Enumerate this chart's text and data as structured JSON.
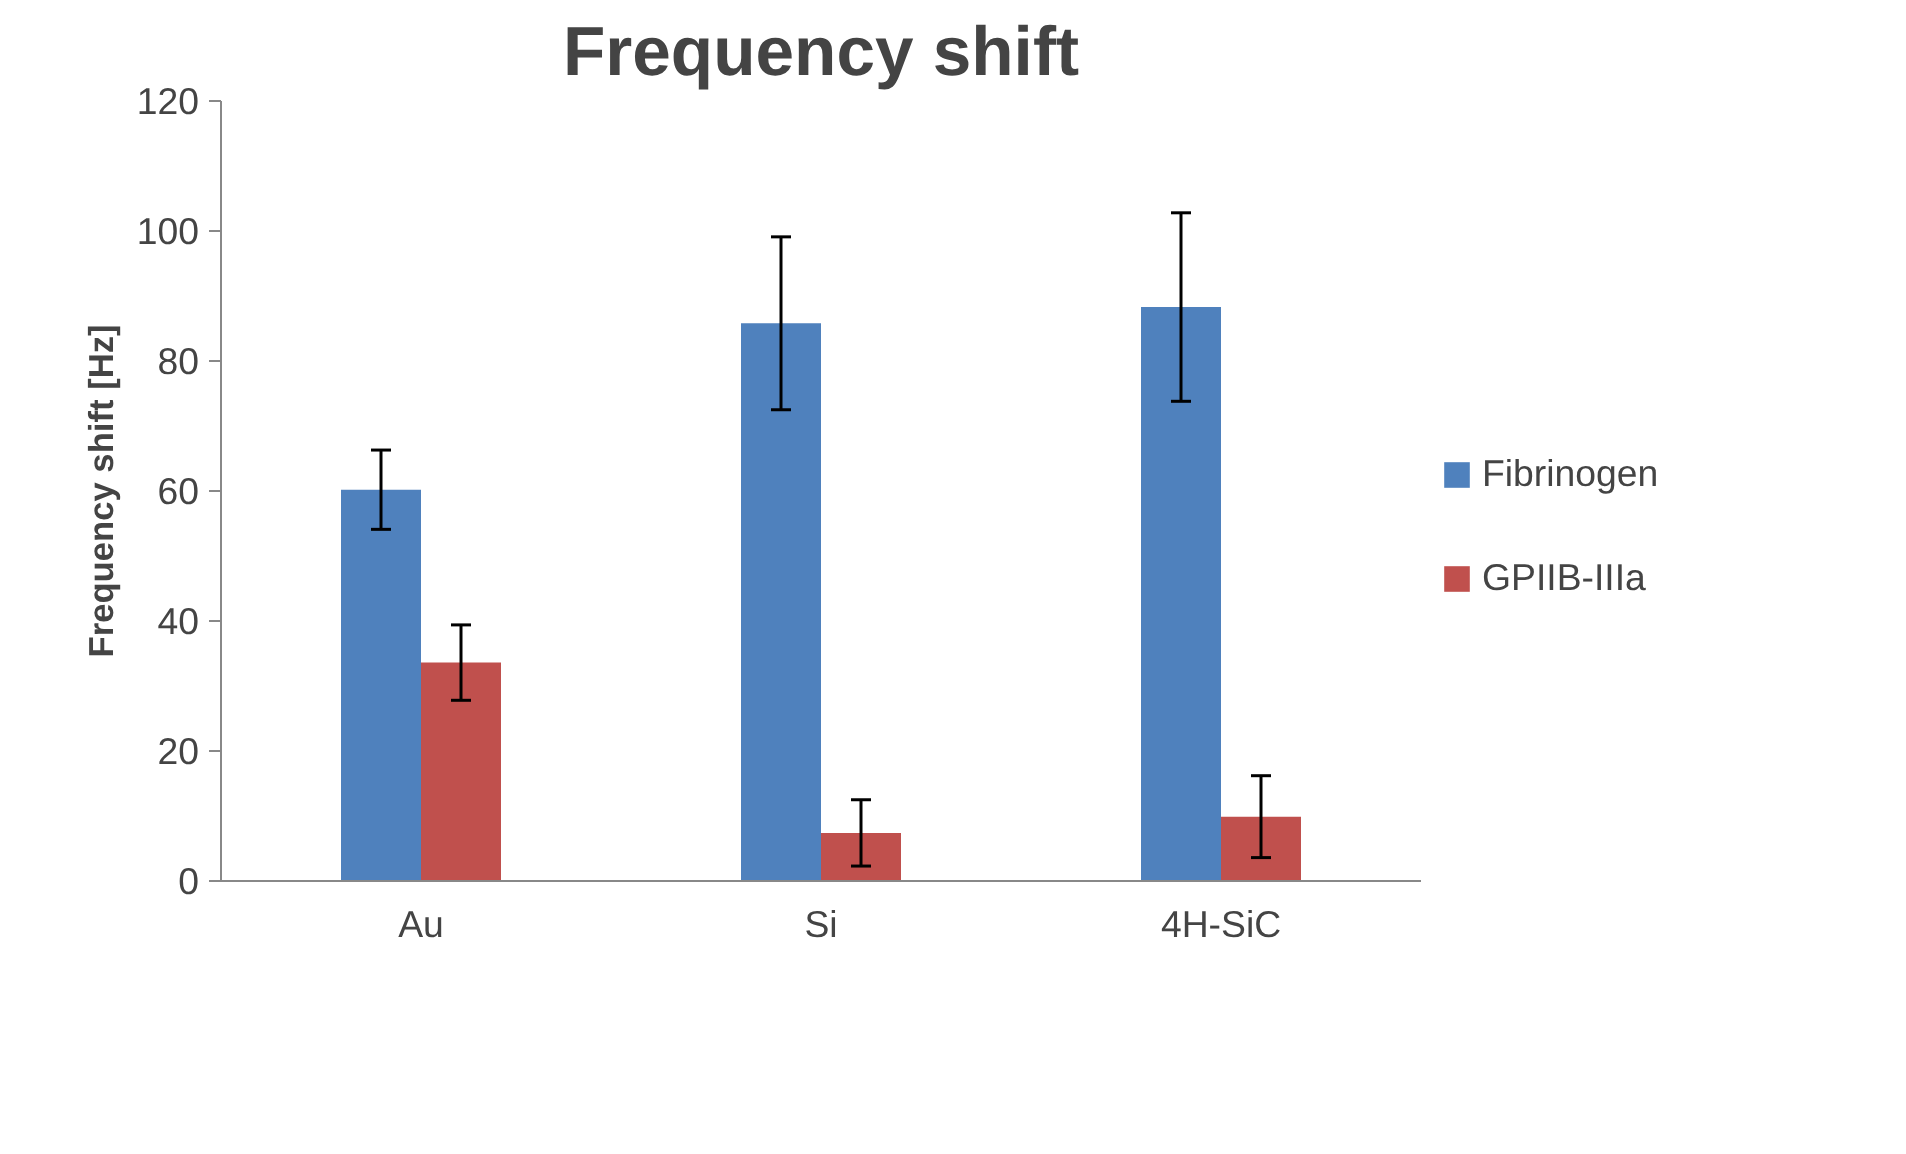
{
  "chart_data": {
    "type": "bar",
    "title": "Frequency shift",
    "ylabel": "Frequency shift [Hz]",
    "categories": [
      "Au",
      "Si",
      "4H-SiC"
    ],
    "series": [
      {
        "name": "Fibrinogen",
        "color": "#4f81bd",
        "values": [
          60.2,
          85.8,
          88.3
        ],
        "errors": [
          6.1,
          13.3,
          14.5
        ]
      },
      {
        "name": "GPIIB-IIIa",
        "color": "#c0504d",
        "values": [
          33.6,
          7.4,
          9.9
        ],
        "errors": [
          5.8,
          5.1,
          6.3
        ]
      }
    ],
    "ylim": [
      0,
      120
    ],
    "yticks": [
      0,
      20,
      40,
      60,
      80,
      100,
      120
    ],
    "grid": false,
    "legend": "right"
  }
}
